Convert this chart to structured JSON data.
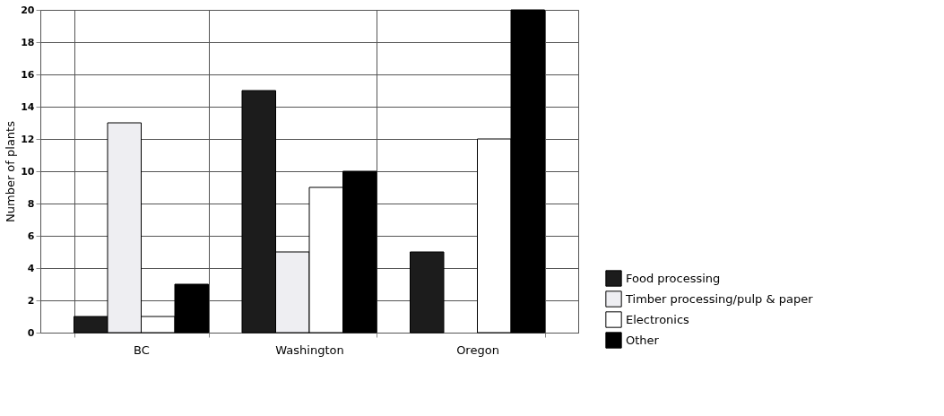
{
  "chart_data": {
    "type": "bar",
    "ylabel": "Number of plants",
    "categories": [
      "BC",
      "Washington",
      "Oregon"
    ],
    "series": [
      {
        "name": "Food processing",
        "color": "#1c1c1c",
        "values": [
          1,
          15,
          5
        ]
      },
      {
        "name": "Timber processing/pulp & paper",
        "color": "#eeeef2",
        "values": [
          13,
          5,
          0
        ]
      },
      {
        "name": "Electronics",
        "color": "#ffffff",
        "values": [
          1,
          9,
          12
        ]
      },
      {
        "name": "Other",
        "color": "#000000",
        "values": [
          3,
          10,
          20
        ]
      }
    ],
    "ylim": [
      0,
      20
    ],
    "yticks": [
      0,
      2,
      4,
      6,
      8,
      10,
      12,
      14,
      16,
      18,
      20
    ],
    "grid": true,
    "legend": "bottom right"
  }
}
